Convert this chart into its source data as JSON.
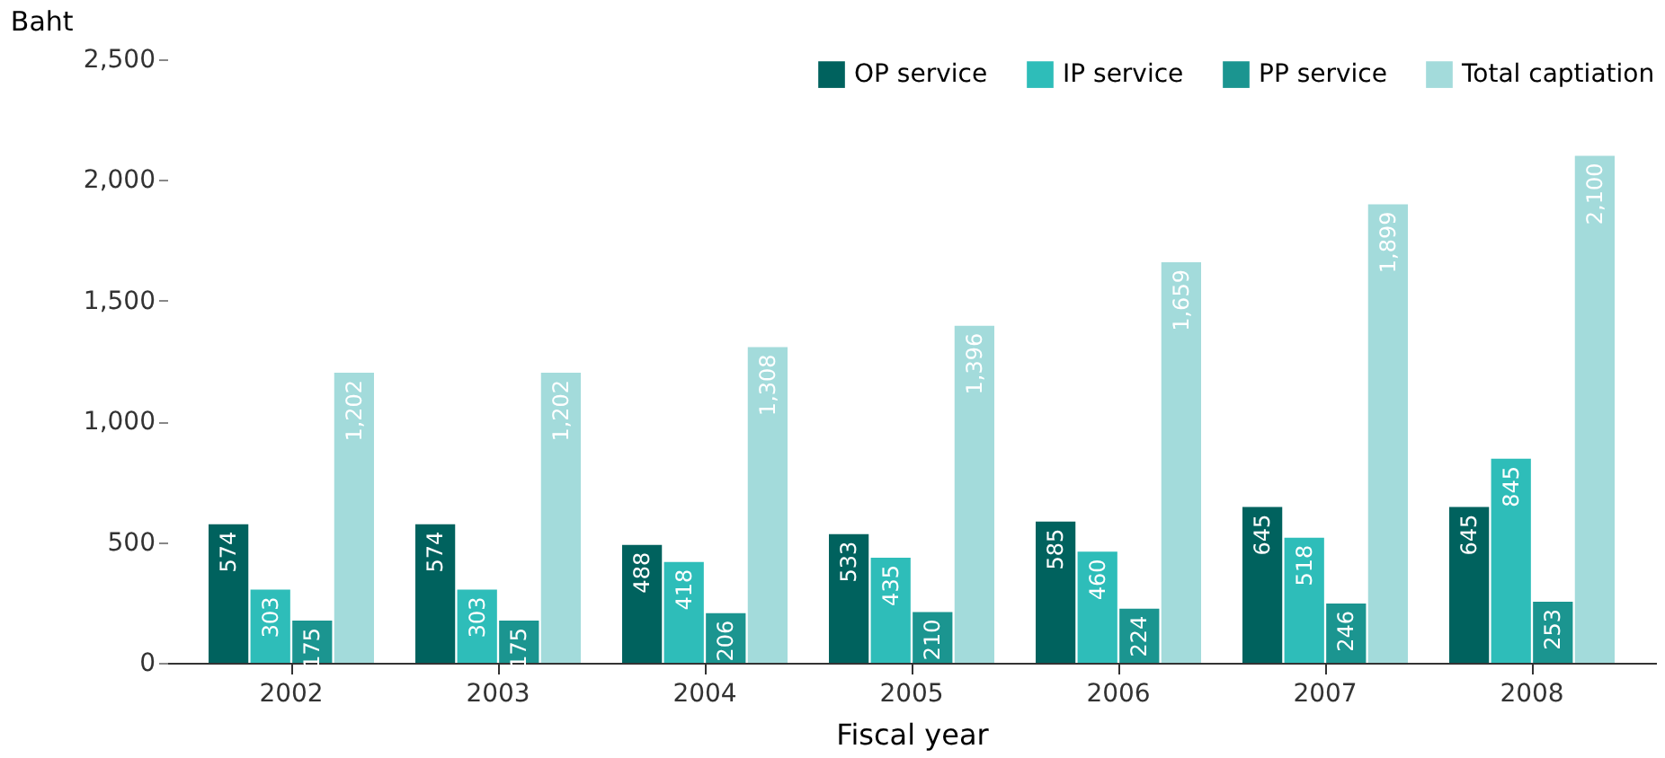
{
  "chart_data": {
    "type": "bar",
    "ylabel": "Baht",
    "xlabel": "Fiscal year",
    "categories": [
      "2002",
      "2003",
      "2004",
      "2005",
      "2006",
      "2007",
      "2008"
    ],
    "series": [
      {
        "name": "OP service",
        "color": "#00625e",
        "values": [
          574,
          574,
          488,
          533,
          585,
          645,
          645
        ],
        "value_labels": [
          "574",
          "574",
          "488",
          "533",
          "585",
          "645",
          "645"
        ]
      },
      {
        "name": "IP service",
        "color": "#2ebdb9",
        "values": [
          303,
          303,
          418,
          435,
          460,
          518,
          845
        ],
        "value_labels": [
          "303",
          "303",
          "418",
          "435",
          "460",
          "518",
          "845"
        ]
      },
      {
        "name": "PP service",
        "color": "#1b9590",
        "values": [
          175,
          175,
          206,
          210,
          224,
          246,
          253
        ],
        "value_labels": [
          "175",
          "175",
          "206",
          "210",
          "224",
          "246",
          "253"
        ]
      },
      {
        "name": "Total captiation",
        "color": "#a3dbdb",
        "values": [
          1202,
          1202,
          1308,
          1396,
          1659,
          1899,
          2100
        ],
        "value_labels": [
          "1,202",
          "1,202",
          "1,308",
          "1,396",
          "1,659",
          "1,899",
          "2,100"
        ]
      }
    ],
    "ylim": [
      0,
      2500
    ],
    "yticks": [
      {
        "value": 0,
        "label": "0"
      },
      {
        "value": 500,
        "label": "500"
      },
      {
        "value": 1000,
        "label": "1,000"
      },
      {
        "value": 1500,
        "label": "1,500"
      },
      {
        "value": 2000,
        "label": "2,000"
      },
      {
        "value": 2500,
        "label": "2,500"
      }
    ],
    "grid": false,
    "legend": "top right"
  }
}
